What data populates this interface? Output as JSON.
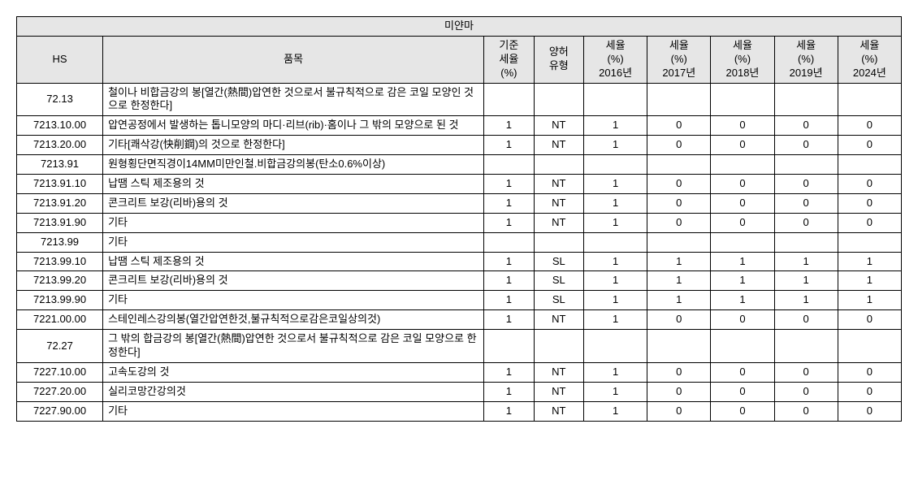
{
  "title": "미얀마",
  "headers": {
    "hs": "HS",
    "item": "품목",
    "base_rate": "기준\n세율\n(%)",
    "concession_type": "양허\n유형",
    "rate_2016": "세율\n(%)\n2016년",
    "rate_2017": "세율\n(%)\n2017년",
    "rate_2018": "세율\n(%)\n2018년",
    "rate_2019": "세율\n(%)\n2019년",
    "rate_2024": "세율\n(%)\n2024년"
  },
  "rows": [
    {
      "hs": "72.13",
      "item": "철이나 비합금강의  봉[열간(熱間)압연한 것으로서 불규칙적으로 감은 코일 모양인 것으로 한정한다]",
      "base": "",
      "type": "",
      "r16": "",
      "r17": "",
      "r18": "",
      "r19": "",
      "r24": ""
    },
    {
      "hs": "7213.10.00",
      "item": "압연공정에서 발생하는 톱니모양의 마디·리브(rib)·홈이나 그 밖의 모양으로 된 것",
      "base": "1",
      "type": "NT",
      "r16": "1",
      "r17": "0",
      "r18": "0",
      "r19": "0",
      "r24": "0"
    },
    {
      "hs": "7213.20.00",
      "item": " 기타[쾌삭강(快削鋼)의 것으로 한정한다]",
      "base": "1",
      "type": "NT",
      "r16": "1",
      "r17": "0",
      "r18": "0",
      "r19": "0",
      "r24": "0"
    },
    {
      "hs": "7213.91",
      "item": "원형횡단면직경이14MM미만인철.비합금강의봉(탄소0.6%이상)",
      "base": "",
      "type": "",
      "r16": "",
      "r17": "",
      "r18": "",
      "r19": "",
      "r24": ""
    },
    {
      "hs": "7213.91.10",
      "item": "납땜  스틱 제조용의 것",
      "base": "1",
      "type": "NT",
      "r16": "1",
      "r17": "0",
      "r18": "0",
      "r19": "0",
      "r24": "0"
    },
    {
      "hs": "7213.91.20",
      "item": "콘크리트  보강(리바)용의 것",
      "base": "1",
      "type": "NT",
      "r16": "1",
      "r17": "0",
      "r18": "0",
      "r19": "0",
      "r24": "0"
    },
    {
      "hs": "7213.91.90",
      "item": "기타",
      "base": "1",
      "type": "NT",
      "r16": "1",
      "r17": "0",
      "r18": "0",
      "r19": "0",
      "r24": "0"
    },
    {
      "hs": "7213.99",
      "item": " 기타",
      "base": "",
      "type": "",
      "r16": "",
      "r17": "",
      "r18": "",
      "r19": "",
      "r24": ""
    },
    {
      "hs": "7213.99.10",
      "item": "납땜 스틱 제조용의 것",
      "base": "1",
      "type": "SL",
      "r16": "1",
      "r17": "1",
      "r18": "1",
      "r19": "1",
      "r24": "1"
    },
    {
      "hs": "7213.99.20",
      "item": "콘크리트  보강(리바)용의 것",
      "base": "1",
      "type": "SL",
      "r16": "1",
      "r17": "1",
      "r18": "1",
      "r19": "1",
      "r24": "1"
    },
    {
      "hs": "7213.99.90",
      "item": "기타",
      "base": "1",
      "type": "SL",
      "r16": "1",
      "r17": "1",
      "r18": "1",
      "r19": "1",
      "r24": "1"
    },
    {
      "hs": "7221.00.00",
      "item": "스테인레스강의봉(열간압연한것,불규칙적으로감은코일상의것)",
      "base": "1",
      "type": "NT",
      "r16": "1",
      "r17": "0",
      "r18": "0",
      "r19": "0",
      "r24": "0"
    },
    {
      "hs": "72.27",
      "item": "그  밖의 합금강의 봉[열간(熱間)압연한 것으로서 불규칙적으로 감은 코일 모양으로 한정한다]",
      "base": "",
      "type": "",
      "r16": "",
      "r17": "",
      "r18": "",
      "r19": "",
      "r24": ""
    },
    {
      "hs": "7227.10.00",
      "item": "고속도강의 것",
      "base": "1",
      "type": "NT",
      "r16": "1",
      "r17": "0",
      "r18": "0",
      "r19": "0",
      "r24": "0"
    },
    {
      "hs": "7227.20.00",
      "item": "실리코망간강의것",
      "base": "1",
      "type": "NT",
      "r16": "1",
      "r17": "0",
      "r18": "0",
      "r19": "0",
      "r24": "0"
    },
    {
      "hs": "7227.90.00",
      "item": "기타",
      "base": "1",
      "type": "NT",
      "r16": "1",
      "r17": "0",
      "r18": "0",
      "r19": "0",
      "r24": "0"
    }
  ],
  "colors": {
    "header_bg": "#e6e6e6",
    "border": "#000000",
    "text": "#000000",
    "bg": "#ffffff"
  }
}
